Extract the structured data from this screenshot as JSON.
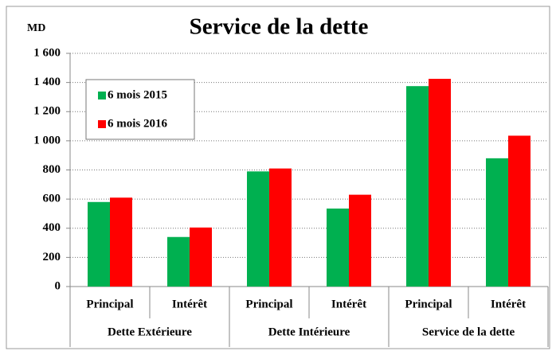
{
  "chart_data": {
    "type": "bar",
    "title": "Service de la dette",
    "ylabel": "MD",
    "categories": [
      "Principal",
      "Intérêt",
      "Principal",
      "Intérêt",
      "Principal",
      "Intérêt"
    ],
    "category_groups": [
      "Dette Extérieure",
      "Dette Intérieure",
      "Service de la dette"
    ],
    "series": [
      {
        "name": "6 mois 2015",
        "color": "#00b050",
        "values": [
          580,
          340,
          790,
          535,
          1375,
          880
        ]
      },
      {
        "name": "6 mois 2016",
        "color": "#ff0000",
        "values": [
          610,
          405,
          810,
          630,
          1425,
          1035
        ]
      }
    ],
    "ylim": [
      0,
      1600
    ],
    "yticks": [
      0,
      200,
      400,
      600,
      800,
      {
        "value": 1000,
        "label": "1 000"
      },
      {
        "value": 1200,
        "label": "1 200"
      },
      {
        "value": 1400,
        "label": "1 400"
      },
      {
        "value": 1600,
        "label": "1 600"
      }
    ],
    "grid": true,
    "legend": "upper left"
  }
}
